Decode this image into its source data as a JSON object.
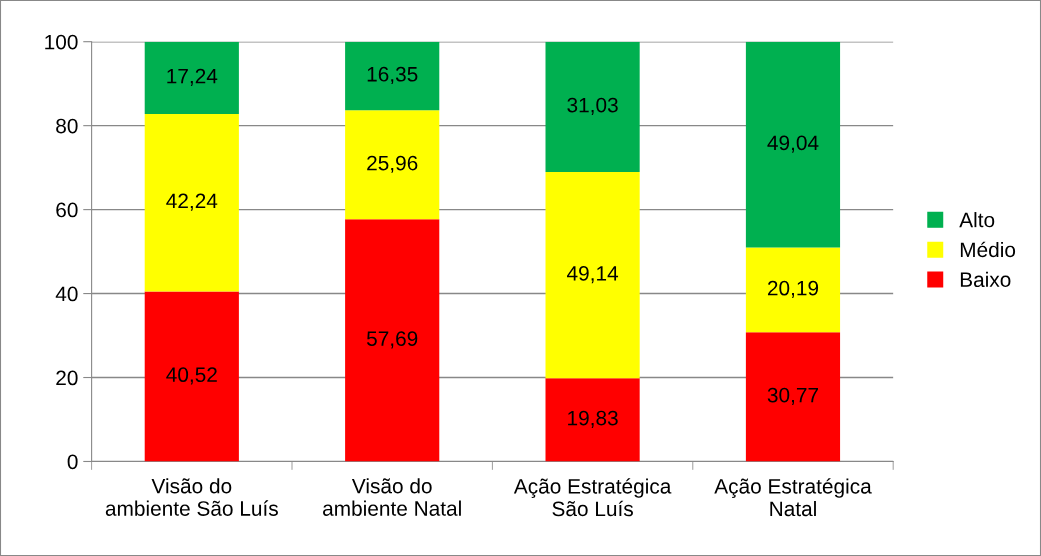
{
  "chart_data": {
    "type": "bar",
    "stacked": true,
    "categories": [
      "Visão do\nambiente São Luís",
      "Visão do\nambiente Natal",
      "Ação Estratégica\nSão Luís",
      "Ação Estratégica\nNatal"
    ],
    "series": [
      {
        "name": "Baixo",
        "color": "#ff0000",
        "values": [
          40.52,
          57.69,
          19.83,
          30.77
        ],
        "value_labels": [
          "40,52",
          "57,69",
          "19,83",
          "30,77"
        ]
      },
      {
        "name": "Médio",
        "color": "#ffff00",
        "values": [
          42.24,
          25.96,
          49.14,
          20.19
        ],
        "value_labels": [
          "42,24",
          "25,96",
          "49,14",
          "20,19"
        ]
      },
      {
        "name": "Alto",
        "color": "#00b050",
        "values": [
          17.24,
          16.35,
          31.03,
          49.04
        ],
        "value_labels": [
          "17,24",
          "16,35",
          "31,03",
          "49,04"
        ]
      }
    ],
    "ylim": [
      0,
      100
    ],
    "yticks": [
      0,
      20,
      40,
      60,
      80,
      100
    ],
    "grid": "y",
    "legend": "right"
  }
}
